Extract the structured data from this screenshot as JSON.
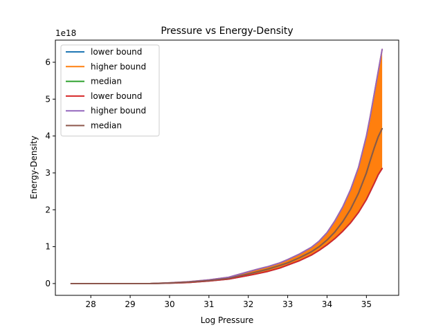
{
  "chart_data": {
    "type": "line",
    "title": "Pressure vs Energy-Density",
    "xlabel": "Log Pressure",
    "ylabel": "Energy-Density",
    "offset_label": "1e18",
    "xlim": [
      27.1,
      35.82
    ],
    "ylim": [
      -0.32,
      6.6
    ],
    "y_scale": 1e+18,
    "x_ticks": [
      28,
      29,
      30,
      31,
      32,
      33,
      34,
      35
    ],
    "x_tick_labels": [
      "28",
      "29",
      "30",
      "31",
      "32",
      "33",
      "34",
      "35"
    ],
    "y_ticks": [
      0,
      1,
      2,
      3,
      4,
      5,
      6
    ],
    "y_tick_labels": [
      "0",
      "1",
      "2",
      "3",
      "4",
      "5",
      "6"
    ],
    "grid": false,
    "legend_position": "upper-left",
    "x": [
      27.5,
      28.0,
      28.5,
      29.0,
      29.5,
      30.0,
      30.5,
      31.0,
      31.5,
      32.0,
      32.2,
      32.5,
      32.8,
      33.0,
      33.3,
      33.6,
      33.8,
      34.0,
      34.2,
      34.4,
      34.6,
      34.8,
      35.0,
      35.1,
      35.2,
      35.3,
      35.4
    ],
    "series": [
      {
        "name": "lower bound",
        "color": "#1f77b4",
        "values": [
          0,
          0,
          0,
          0,
          0,
          0.01,
          0.03,
          0.07,
          0.12,
          0.22,
          0.26,
          0.33,
          0.42,
          0.5,
          0.62,
          0.77,
          0.9,
          1.05,
          1.22,
          1.42,
          1.65,
          1.93,
          2.28,
          2.5,
          2.72,
          2.95,
          3.12
        ]
      },
      {
        "name": "higher bound",
        "color": "#ff7f0e",
        "values": [
          0,
          0,
          0,
          0,
          0,
          0.02,
          0.05,
          0.1,
          0.17,
          0.32,
          0.38,
          0.46,
          0.56,
          0.65,
          0.8,
          0.98,
          1.15,
          1.38,
          1.7,
          2.08,
          2.55,
          3.15,
          4.0,
          4.55,
          5.15,
          5.75,
          6.35
        ]
      },
      {
        "name": "median",
        "color": "#2ca02c",
        "values": [
          0,
          0,
          0,
          0,
          0,
          0.015,
          0.04,
          0.08,
          0.14,
          0.26,
          0.31,
          0.39,
          0.49,
          0.56,
          0.7,
          0.86,
          1.0,
          1.18,
          1.4,
          1.68,
          2.02,
          2.45,
          3.0,
          3.35,
          3.68,
          3.98,
          4.2
        ]
      },
      {
        "name": "lower bound",
        "color": "#d62728",
        "values": [
          0,
          0,
          0,
          0,
          0,
          0.01,
          0.03,
          0.07,
          0.12,
          0.22,
          0.26,
          0.33,
          0.42,
          0.5,
          0.62,
          0.77,
          0.9,
          1.05,
          1.22,
          1.42,
          1.65,
          1.93,
          2.28,
          2.5,
          2.72,
          2.95,
          3.12
        ]
      },
      {
        "name": "higher bound",
        "color": "#9467bd",
        "values": [
          0,
          0,
          0,
          0,
          0,
          0.02,
          0.05,
          0.1,
          0.17,
          0.32,
          0.38,
          0.46,
          0.56,
          0.65,
          0.8,
          0.98,
          1.15,
          1.38,
          1.7,
          2.08,
          2.55,
          3.15,
          4.0,
          4.55,
          5.15,
          5.75,
          6.35
        ]
      },
      {
        "name": "median",
        "color": "#8c564b",
        "values": [
          0,
          0,
          0,
          0,
          0,
          0.015,
          0.04,
          0.08,
          0.14,
          0.26,
          0.31,
          0.39,
          0.49,
          0.56,
          0.7,
          0.86,
          1.0,
          1.18,
          1.4,
          1.68,
          2.02,
          2.45,
          3.0,
          3.35,
          3.68,
          3.98,
          4.2
        ]
      }
    ],
    "fill_between": {
      "lower_series": 0,
      "upper_series": 1,
      "color": "#ff7f0e"
    }
  }
}
